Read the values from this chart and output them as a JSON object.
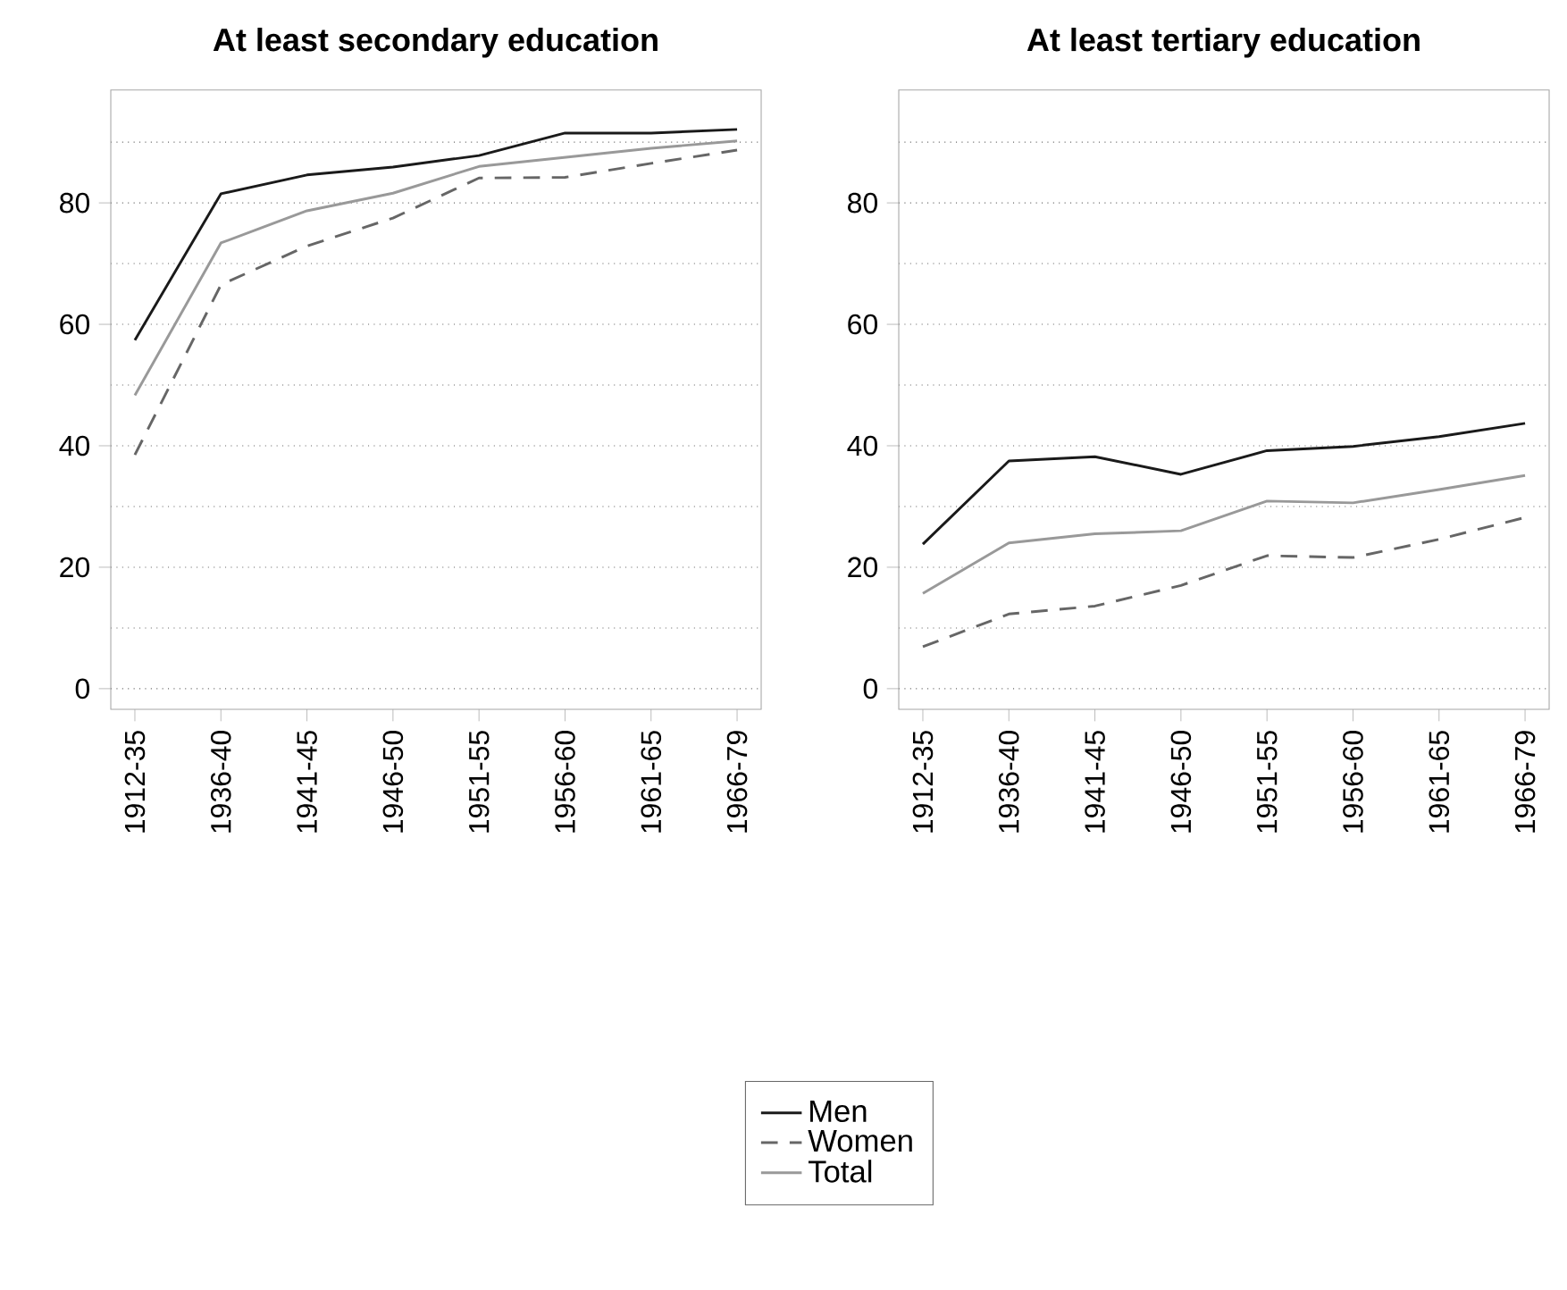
{
  "chart_data": [
    {
      "type": "line",
      "title": "At least secondary education",
      "categories": [
        "1912-35",
        "1936-40",
        "1941-45",
        "1946-50",
        "1951-55",
        "1956-60",
        "1961-65",
        "1966-79"
      ],
      "series": [
        {
          "name": "Men",
          "color": "#1a1a1a",
          "line_style": "solid",
          "values": [
            57.4,
            81.5,
            84.6,
            85.9,
            87.8,
            91.5,
            91.5,
            92.1
          ]
        },
        {
          "name": "Women",
          "color": "#666666",
          "line_style": "dashed",
          "values": [
            38.5,
            66.5,
            72.9,
            77.5,
            84.1,
            84.2,
            86.5,
            88.7
          ]
        },
        {
          "name": "Total",
          "color": "#999999",
          "line_style": "solid",
          "values": [
            48.3,
            73.4,
            78.7,
            81.6,
            86.0,
            87.5,
            89.0,
            90.2
          ]
        }
      ],
      "ylim": [
        -3.4,
        98.6
      ],
      "yticks": [
        0,
        {
          "value": 10,
          "label": null
        },
        20,
        {
          "value": 30,
          "label": null
        },
        40,
        {
          "value": 50,
          "label": null
        },
        60,
        {
          "value": 70,
          "label": null
        },
        80,
        {
          "value": 90,
          "label": null
        }
      ],
      "grid": "y",
      "legend": "bottom"
    },
    {
      "type": "line",
      "title": "At least tertiary education",
      "categories": [
        "1912-35",
        "1936-40",
        "1941-45",
        "1946-50",
        "1951-55",
        "1956-60",
        "1961-65",
        "1966-79"
      ],
      "series": [
        {
          "color": "#1a1a1a",
          "line_style": "solid",
          "values": [
            23.8,
            37.5,
            38.2,
            35.3,
            39.2,
            39.9,
            41.5,
            43.7
          ]
        },
        {
          "color": "#666666",
          "line_style": "dashed",
          "values": [
            6.9,
            12.3,
            13.6,
            17.0,
            21.9,
            21.6,
            24.6,
            28.2
          ]
        },
        {
          "color": "#999999",
          "line_style": "solid",
          "values": [
            15.7,
            24.0,
            25.5,
            26.0,
            30.9,
            30.6,
            32.8,
            35.1
          ]
        }
      ],
      "ylim": [
        -3.4,
        98.6
      ],
      "yticks": [
        0,
        {
          "value": 10,
          "label": null
        },
        20,
        {
          "value": 30,
          "label": null
        },
        40,
        {
          "value": 50,
          "label": null
        },
        60,
        {
          "value": 70,
          "label": null
        },
        80,
        {
          "value": 90,
          "label": null
        }
      ],
      "grid": "y"
    }
  ]
}
